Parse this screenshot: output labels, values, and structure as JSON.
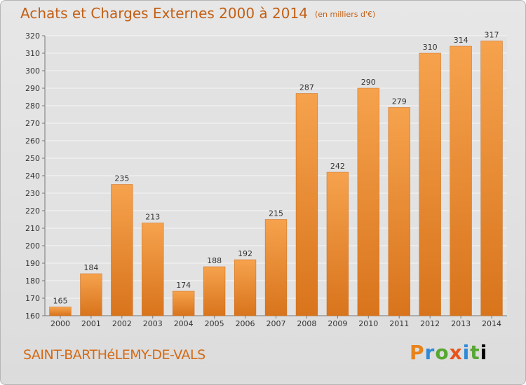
{
  "header": {
    "title": "Achats et Charges Externes 2000 à 2014",
    "unit": "(en milliers d'€)"
  },
  "footer": {
    "commune": "SAINT-BARTHéLEMY-DE-VALS",
    "brand_letters": [
      "P",
      "r",
      "o",
      "x",
      "i",
      "t",
      "i"
    ]
  },
  "colors": {
    "bar_top": "#f6a24d",
    "bar_bottom": "#d8741c",
    "title": "#c25f14",
    "grid": "#f5f5f5"
  },
  "chart_data": {
    "type": "bar",
    "title": "Achats et Charges Externes 2000 à 2014",
    "subtitle": "(en milliers d'€)",
    "categories": [
      "2000",
      "2001",
      "2002",
      "2003",
      "2004",
      "2005",
      "2006",
      "2007",
      "2008",
      "2009",
      "2010",
      "2011",
      "2012",
      "2013",
      "2014"
    ],
    "values": [
      165,
      184,
      235,
      213,
      174,
      188,
      192,
      215,
      287,
      242,
      290,
      279,
      310,
      314,
      317
    ],
    "ylim": [
      160,
      320
    ],
    "yticks": [
      160,
      170,
      180,
      190,
      200,
      210,
      220,
      230,
      240,
      250,
      260,
      270,
      280,
      290,
      300,
      310,
      320
    ],
    "grid": true,
    "xlabel": "",
    "ylabel": ""
  }
}
